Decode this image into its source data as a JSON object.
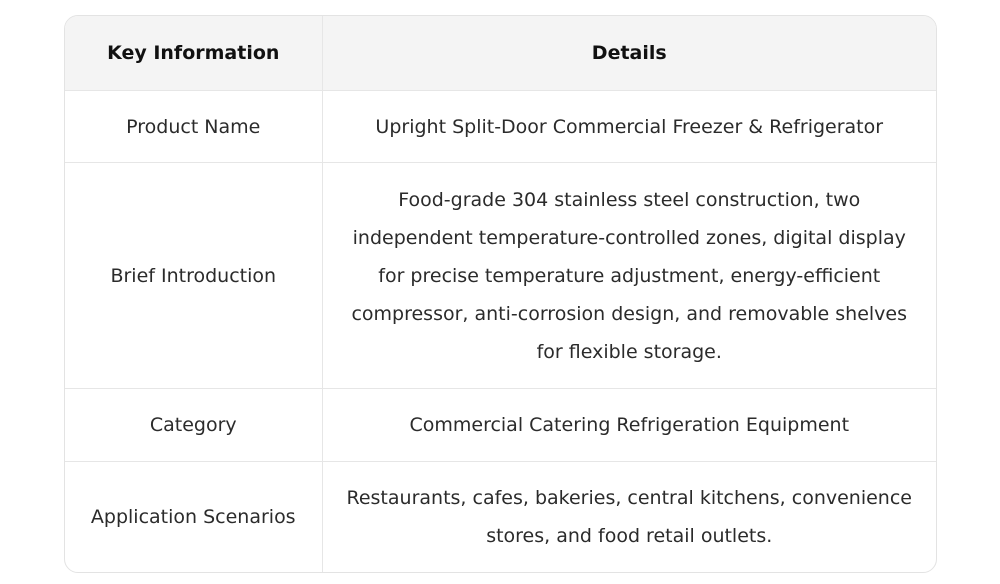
{
  "table": {
    "headers": [
      "Key Information",
      "Details"
    ],
    "rows": [
      {
        "key": "Product Name",
        "value": "Upright Split-Door Commercial Freezer & Refrigerator"
      },
      {
        "key": "Brief Introduction",
        "value": "Food-grade 304 stainless steel construction, two independent temperature-controlled zones, digital display for precise temperature adjustment, energy-efficient compressor, anti-corrosion design, and removable shelves for flexible storage."
      },
      {
        "key": "Category",
        "value": "Commercial Catering Refrigeration Equipment"
      },
      {
        "key": "Application Scenarios",
        "value": "Restaurants, cafes, bakeries, central kitchens, convenience stores, and food retail outlets."
      }
    ]
  },
  "colors": {
    "header_bg": "#f4f4f4",
    "border": "#e6e6e6",
    "text": "#2b2b2b"
  }
}
